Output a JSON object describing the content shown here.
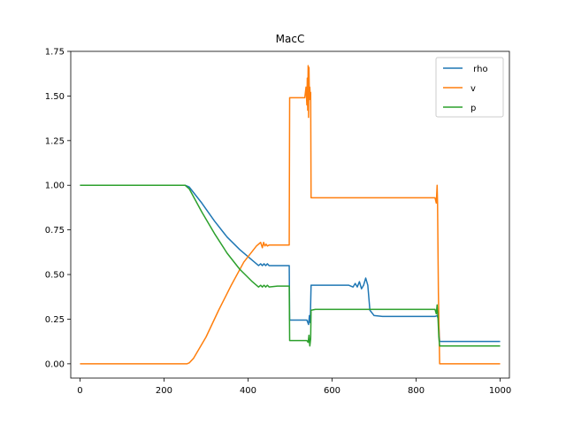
{
  "chart_data": {
    "type": "line",
    "title": "MacC",
    "xlabel": "",
    "ylabel": "",
    "xlim": [
      -22,
      1022
    ],
    "ylim": [
      -0.08,
      1.75
    ],
    "xticks": [
      0,
      200,
      400,
      600,
      800,
      1000
    ],
    "yticks": [
      0.0,
      0.25,
      0.5,
      0.75,
      1.0,
      1.25,
      1.5,
      1.75
    ],
    "xtick_labels": [
      "0",
      "200",
      "400",
      "600",
      "800",
      "1000"
    ],
    "ytick_labels": [
      "0.00",
      "0.25",
      "0.50",
      "0.75",
      "1.00",
      "1.25",
      "1.50",
      "1.75"
    ],
    "grid": false,
    "legend_position": "top-right",
    "series": [
      {
        "name": " rho",
        "color": "#1f77b4",
        "x": [
          0,
          250,
          260,
          290,
          320,
          350,
          380,
          410,
          425,
          430,
          434,
          438,
          442,
          446,
          450,
          470,
          498,
          499,
          540,
          544,
          546,
          548,
          550,
          552,
          640,
          650,
          655,
          660,
          665,
          670,
          675,
          680,
          685,
          690,
          700,
          720,
          845,
          850,
          853,
          856,
          1000
        ],
        "y": [
          1.0,
          1.0,
          0.99,
          0.9,
          0.8,
          0.71,
          0.64,
          0.58,
          0.55,
          0.56,
          0.55,
          0.56,
          0.55,
          0.56,
          0.55,
          0.55,
          0.55,
          0.245,
          0.245,
          0.22,
          0.27,
          0.23,
          0.44,
          0.44,
          0.44,
          0.43,
          0.45,
          0.43,
          0.46,
          0.42,
          0.44,
          0.48,
          0.44,
          0.3,
          0.27,
          0.265,
          0.265,
          0.27,
          0.25,
          0.125,
          0.125
        ]
      },
      {
        "name": "v",
        "color": "#ff7f0e",
        "x": [
          0,
          255,
          260,
          270,
          300,
          330,
          360,
          390,
          420,
          430,
          434,
          437,
          440,
          443,
          446,
          450,
          470,
          498,
          499,
          535,
          538,
          540,
          541,
          542,
          543,
          544,
          545,
          546,
          547,
          548,
          549,
          550,
          560,
          845,
          848,
          849,
          850,
          851,
          853,
          856,
          1000
        ],
        "y": [
          0.0,
          0.0,
          0.005,
          0.03,
          0.15,
          0.3,
          0.44,
          0.57,
          0.66,
          0.68,
          0.65,
          0.68,
          0.66,
          0.67,
          0.66,
          0.665,
          0.665,
          0.665,
          1.49,
          1.49,
          1.55,
          1.45,
          1.6,
          1.42,
          1.67,
          1.38,
          1.66,
          1.48,
          1.55,
          1.5,
          1.52,
          0.93,
          0.93,
          0.93,
          0.9,
          0.95,
          1.0,
          0.9,
          0.4,
          0.0,
          0.0
        ]
      },
      {
        "name": "p",
        "color": "#2ca02c",
        "x": [
          0,
          250,
          260,
          290,
          320,
          350,
          380,
          410,
          425,
          430,
          434,
          438,
          442,
          446,
          450,
          470,
          498,
          499,
          540,
          543,
          545,
          547,
          549,
          550,
          560,
          845,
          848,
          850,
          852,
          854,
          856,
          1000
        ],
        "y": [
          1.0,
          1.0,
          0.98,
          0.85,
          0.73,
          0.62,
          0.53,
          0.46,
          0.43,
          0.44,
          0.43,
          0.44,
          0.43,
          0.44,
          0.43,
          0.435,
          0.435,
          0.13,
          0.13,
          0.12,
          0.16,
          0.1,
          0.14,
          0.3,
          0.305,
          0.305,
          0.28,
          0.33,
          0.26,
          0.15,
          0.1,
          0.1
        ]
      }
    ]
  }
}
